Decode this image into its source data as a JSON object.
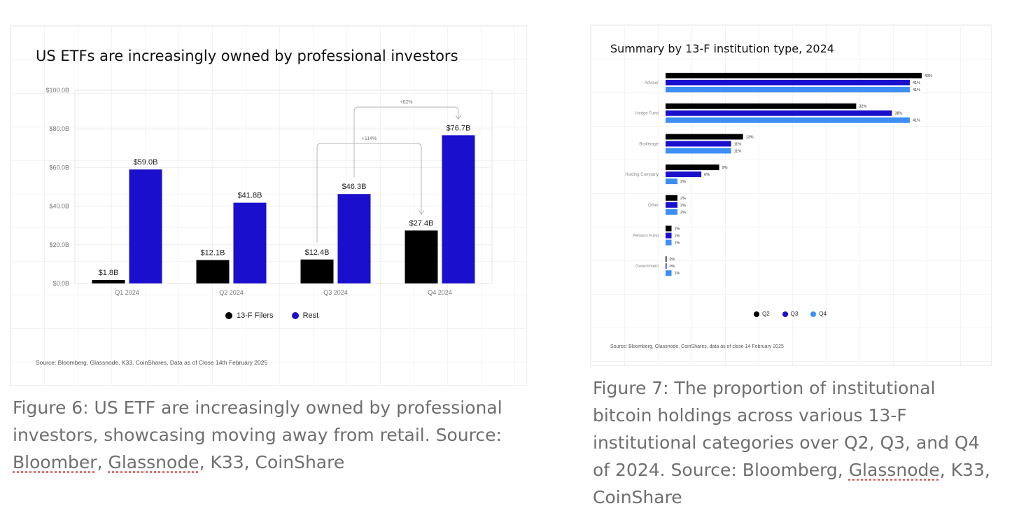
{
  "figure6": {
    "title": "US ETFs are increasingly owned by professional investors",
    "source": "Source: Bloomberg, Glassnode, K33, CoinShares, Data as of Close 14th February 2025",
    "caption": {
      "part1": "Figure 6: US ETF are increasingly owned by professional investors, showcasing moving away from retail. Source: ",
      "w1": "Bloomber",
      "sep1": ", ",
      "w2": "Glassnode",
      "part2": ", K33, CoinShare"
    }
  },
  "figure7": {
    "title": "Summary by 13-F institution type, 2024",
    "source": "Source: Bloomberg, Glassnode, CoinShares, data as of close 14 February 2025",
    "caption": {
      "part1": "Figure 7: The proportion of institutional bitcoin holdings across various 13-F institutional categories over Q2, Q3, and Q4 of 2024. Source: Bloomberg, ",
      "w1": "Glassnode",
      "part2": ", K33, CoinShare"
    }
  },
  "chart_data": [
    {
      "type": "bar",
      "title": "US ETFs are increasingly owned by professional investors",
      "categories": [
        "Q1 2024",
        "Q2 2024",
        "Q3 2024",
        "Q4 2024"
      ],
      "series": [
        {
          "name": "13-F Filers",
          "color": "#000000",
          "values": [
            1.8,
            12.1,
            12.4,
            27.4
          ],
          "labels": [
            "$1.8B",
            "$12.1B",
            "$12.4B",
            "$27.4B"
          ]
        },
        {
          "name": "Rest",
          "color": "#1a0fcc",
          "values": [
            59.0,
            41.8,
            46.3,
            76.7
          ],
          "labels": [
            "$59.0B",
            "$41.8B",
            "$46.3B",
            "$76.7B"
          ]
        }
      ],
      "yticks": [
        0,
        20,
        40,
        60,
        80,
        100
      ],
      "ytick_labels": [
        "$0.0B",
        "$20.0B",
        "$40.0B",
        "$60.0B",
        "$80.0B",
        "$100.0B"
      ],
      "ylim": [
        0,
        100
      ],
      "annotations": [
        "+114%",
        "+62%"
      ],
      "legend": "bottom-center",
      "xlabel": "",
      "ylabel": ""
    },
    {
      "type": "bar",
      "orientation": "horizontal",
      "title": "Summary by 13-F institution type, 2024",
      "categories": [
        "Advisor",
        "Hedge Fund",
        "Brokerage",
        "Holding Company",
        "Other",
        "Pension Fund",
        "Government"
      ],
      "series": [
        {
          "name": "Q2",
          "color": "#000000",
          "values": [
            43,
            32,
            13,
            9,
            2,
            1,
            0
          ]
        },
        {
          "name": "Q3",
          "color": "#1a0fcc",
          "values": [
            41,
            38,
            11,
            6,
            2,
            1,
            0
          ]
        },
        {
          "name": "Q4",
          "color": "#3d8ef5",
          "values": [
            41,
            41,
            11,
            2,
            2,
            1,
            1
          ]
        }
      ],
      "value_suffix": "%",
      "xlim": [
        0,
        43
      ],
      "legend": "bottom-center",
      "xlabel": "",
      "ylabel": ""
    }
  ]
}
